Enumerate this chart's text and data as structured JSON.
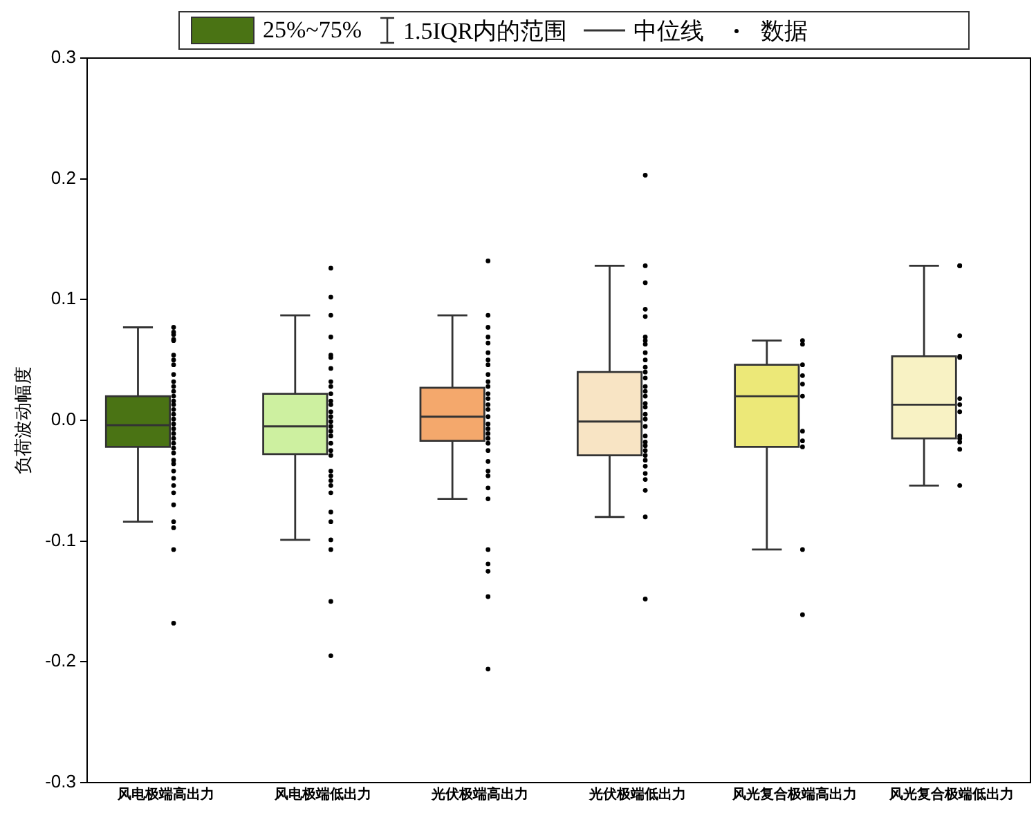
{
  "chart_data": {
    "type": "box",
    "ylabel": "负荷波动幅度",
    "categories": [
      "风电极端高出力",
      "风电极端低出力",
      "光伏极端高出力",
      "光伏极端低出力",
      "风光复合极端高出力",
      "风光复合极端低出力"
    ],
    "ylim": [
      -0.3,
      0.3
    ],
    "yticks": [
      -0.3,
      -0.2,
      -0.1,
      {
        "value": 0,
        "label": "0.0"
      },
      0.1,
      0.2,
      0.3
    ],
    "grid": false,
    "legend": "top",
    "marker": "circle",
    "annotations": [
      "1.5IQR内的范围",
      "中位线"
    ],
    "series": [
      {
        "name": "25%~75%",
        "type": "box",
        "colors": [
          "#4a7314",
          "#cdf0a0",
          "#f4a86c",
          "#f8e4c4",
          "#ece878",
          "#f8f2c4"
        ],
        "boxes": [
          {
            "low": -0.084,
            "q1": -0.022,
            "median": -0.004,
            "q3": 0.02,
            "high": 0.077
          },
          {
            "low": -0.099,
            "q1": -0.028,
            "median": -0.005,
            "q3": 0.022,
            "high": 0.087
          },
          {
            "low": -0.065,
            "q1": -0.017,
            "median": 0.003,
            "q3": 0.027,
            "high": 0.087
          },
          {
            "low": -0.08,
            "q1": -0.029,
            "median": -0.001,
            "q3": 0.04,
            "high": 0.128
          },
          {
            "low": -0.107,
            "q1": -0.022,
            "median": 0.02,
            "q3": 0.046,
            "high": 0.066
          },
          {
            "low": -0.054,
            "q1": -0.015,
            "median": 0.013,
            "q3": 0.053,
            "high": 0.128
          }
        ]
      },
      {
        "name": "数据",
        "type": "scatter",
        "color": "#000000",
        "x": [
          "风电极端高出力",
          "风电极端高出力",
          "风电极端高出力",
          "风电极端高出力",
          "风电极端高出力",
          "风电极端高出力",
          "风电极端高出力",
          "风电极端高出力",
          "风电极端高出力",
          "风电极端高出力",
          "风电极端高出力",
          "风电极端高出力",
          "风电极端高出力",
          "风电极端高出力",
          "风电极端高出力",
          "风电极端高出力",
          "风电极端高出力",
          "风电极端高出力",
          "风电极端高出力",
          "风电极端高出力",
          "风电极端高出力",
          "风电极端高出力",
          "风电极端高出力",
          "风电极端高出力",
          "风电极端高出力",
          "风电极端高出力",
          "风电极端高出力",
          "风电极端高出力",
          "风电极端高出力",
          "风电极端高出力",
          "风电极端高出力",
          "风电极端高出力",
          "风电极端高出力",
          "风电极端高出力",
          "风电极端高出力",
          "风电极端高出力",
          "风电极端低出力",
          "风电极端低出力",
          "风电极端低出力",
          "风电极端低出力",
          "风电极端低出力",
          "风电极端低出力",
          "风电极端低出力",
          "风电极端低出力",
          "风电极端低出力",
          "风电极端低出力",
          "风电极端低出力",
          "风电极端低出力",
          "风电极端低出力",
          "风电极端低出力",
          "风电极端低出力",
          "风电极端低出力",
          "风电极端低出力",
          "风电极端低出力",
          "风电极端低出力",
          "风电极端低出力",
          "风电极端低出力",
          "风电极端低出力",
          "风电极端低出力",
          "风电极端低出力",
          "风电极端低出力",
          "风电极端低出力",
          "风电极端低出力",
          "风电极端低出力",
          "风电极端低出力",
          "风电极端低出力",
          "风电极端低出力",
          "风电极端低出力",
          "光伏极端高出力",
          "光伏极端高出力",
          "光伏极端高出力",
          "光伏极端高出力",
          "光伏极端高出力",
          "光伏极端高出力",
          "光伏极端高出力",
          "光伏极端高出力",
          "光伏极端高出力",
          "光伏极端高出力",
          "光伏极端高出力",
          "光伏极端高出力",
          "光伏极端高出力",
          "光伏极端高出力",
          "光伏极端高出力",
          "光伏极端高出力",
          "光伏极端高出力",
          "光伏极端高出力",
          "光伏极端高出力",
          "光伏极端高出力",
          "光伏极端高出力",
          "光伏极端高出力",
          "光伏极端高出力",
          "光伏极端高出力",
          "光伏极端高出力",
          "光伏极端高出力",
          "光伏极端高出力",
          "光伏极端高出力",
          "光伏极端高出力",
          "光伏极端高出力",
          "光伏极端高出力",
          "光伏极端高出力",
          "光伏极端低出力",
          "光伏极端低出力",
          "光伏极端低出力",
          "光伏极端低出力",
          "光伏极端低出力",
          "光伏极端低出力",
          "光伏极端低出力",
          "光伏极端低出力",
          "光伏极端低出力",
          "光伏极端低出力",
          "光伏极端低出力",
          "光伏极端低出力",
          "光伏极端低出力",
          "光伏极端低出力",
          "光伏极端低出力",
          "光伏极端低出力",
          "光伏极端低出力",
          "光伏极端低出力",
          "光伏极端低出力",
          "光伏极端低出力",
          "光伏极端低出力",
          "光伏极端低出力",
          "光伏极端低出力",
          "光伏极端低出力",
          "光伏极端低出力",
          "光伏极端低出力",
          "光伏极端低出力",
          "光伏极端低出力",
          "光伏极端低出力",
          "光伏极端低出力",
          "光伏极端低出力",
          "光伏极端低出力",
          "光伏极端低出力",
          "风光复合极端高出力",
          "风光复合极端高出力",
          "风光复合极端高出力",
          "风光复合极端高出力",
          "风光复合极端高出力",
          "风光复合极端高出力",
          "风光复合极端高出力",
          "风光复合极端高出力",
          "风光复合极端高出力",
          "风光复合极端高出力",
          "风光复合极端高出力",
          "风光复合极端低出力",
          "风光复合极端低出力",
          "风光复合极端低出力",
          "风光复合极端低出力",
          "风光复合极端低出力",
          "风光复合极端低出力",
          "风光复合极端低出力",
          "风光复合极端低出力",
          "风光复合极端低出力",
          "风光复合极端低出力",
          "风光复合极端低出力",
          "风光复合极端低出力",
          "风光复合极端低出力"
        ],
        "values": [
          0.077,
          0.073,
          0.071,
          0.067,
          0.066,
          0.054,
          0.05,
          0.046,
          0.038,
          0.032,
          0.028,
          0.024,
          0.02,
          0.016,
          0.013,
          0.009,
          0.005,
          0.001,
          -0.003,
          -0.007,
          -0.011,
          -0.015,
          -0.019,
          -0.023,
          -0.027,
          -0.033,
          -0.036,
          -0.042,
          -0.048,
          -0.054,
          -0.06,
          -0.07,
          -0.084,
          -0.089,
          -0.107,
          -0.168,
          0.126,
          0.102,
          0.087,
          0.069,
          0.054,
          0.043,
          0.032,
          0.028,
          0.022,
          0.016,
          0.013,
          0.007,
          0.003,
          -0.001,
          -0.005,
          -0.009,
          -0.013,
          -0.019,
          -0.025,
          -0.029,
          -0.042,
          -0.046,
          -0.05,
          -0.054,
          -0.06,
          -0.076,
          -0.084,
          -0.099,
          -0.107,
          -0.15,
          -0.195,
          0.052,
          0.132,
          0.087,
          0.077,
          0.069,
          0.064,
          0.056,
          0.05,
          0.046,
          0.038,
          0.032,
          0.028,
          0.022,
          0.018,
          0.013,
          0.009,
          0.003,
          -0.003,
          -0.007,
          -0.011,
          -0.015,
          -0.019,
          -0.025,
          -0.034,
          -0.042,
          -0.046,
          -0.056,
          -0.065,
          -0.107,
          -0.119,
          -0.125,
          -0.146,
          -0.206,
          0.203,
          0.128,
          0.114,
          0.092,
          0.086,
          0.069,
          0.066,
          0.063,
          0.056,
          0.05,
          0.044,
          0.04,
          0.035,
          0.028,
          0.024,
          0.02,
          0.014,
          0.011,
          0.005,
          0.001,
          -0.005,
          -0.013,
          -0.018,
          -0.021,
          -0.025,
          -0.029,
          -0.033,
          -0.038,
          -0.044,
          -0.049,
          -0.058,
          -0.08,
          -0.148,
          0.066,
          0.063,
          0.046,
          0.037,
          0.03,
          0.02,
          -0.009,
          -0.017,
          -0.022,
          -0.107,
          -0.161,
          0.128,
          0.128,
          0.07,
          0.053,
          0.052,
          0.018,
          0.013,
          0.007,
          -0.013,
          -0.015,
          -0.018,
          -0.024,
          -0.054
        ]
      }
    ]
  }
}
